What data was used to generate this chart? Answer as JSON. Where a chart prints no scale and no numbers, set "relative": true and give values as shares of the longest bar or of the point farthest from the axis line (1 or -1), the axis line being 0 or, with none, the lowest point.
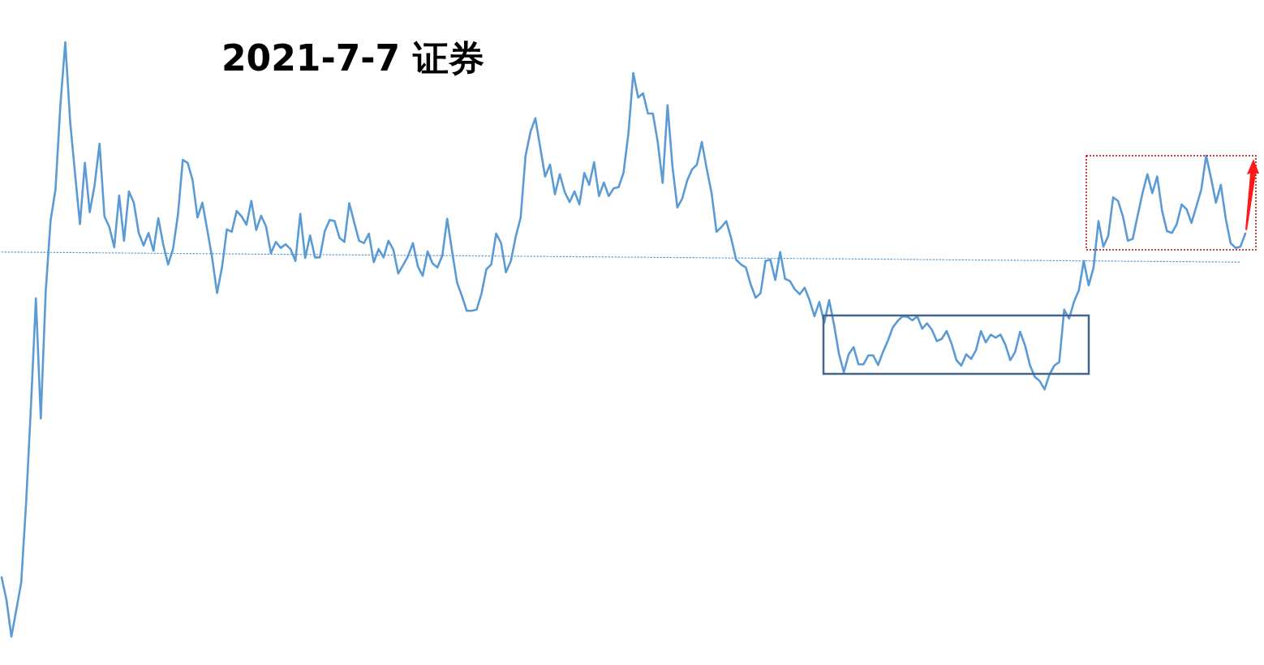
{
  "chart_data": {
    "type": "line",
    "title": "2021-7-7 证券",
    "relative": true,
    "categories": [
      null,
      null,
      null,
      null,
      null,
      null,
      null,
      null,
      null,
      null,
      null,
      null,
      null,
      null,
      null,
      null,
      null,
      null,
      null,
      null,
      null,
      null,
      null,
      null,
      null,
      null,
      null,
      null,
      null,
      null,
      null,
      null,
      null,
      null,
      null,
      null,
      null,
      null,
      null,
      null,
      null,
      null,
      null,
      null,
      null,
      null,
      null,
      null,
      null,
      null,
      null,
      null,
      null,
      null,
      null,
      null,
      null,
      null,
      null,
      null,
      null,
      null,
      null,
      null,
      null,
      null,
      null,
      null,
      null,
      null,
      null,
      null,
      null,
      null,
      null,
      null,
      null,
      null,
      null,
      null,
      null,
      null,
      null,
      null,
      null,
      null,
      null,
      null,
      null,
      null,
      null,
      null,
      null,
      null,
      null,
      null,
      null,
      null,
      null,
      null,
      null,
      null,
      null,
      null,
      null,
      null,
      null,
      null,
      null,
      null,
      null,
      null,
      null,
      null,
      null,
      null,
      null,
      null,
      null,
      null,
      null,
      null,
      null,
      null,
      null,
      null,
      null,
      null,
      null,
      null,
      null,
      null,
      null,
      null,
      null,
      null,
      null,
      null,
      null,
      null,
      null,
      null,
      null,
      null,
      null,
      null,
      null,
      null,
      null,
      null,
      null,
      null,
      null,
      null,
      null,
      null,
      null,
      null,
      null,
      null,
      null,
      null,
      null,
      null,
      null,
      null,
      null,
      null,
      null,
      null,
      null,
      null,
      null,
      null,
      null,
      null,
      null,
      null,
      null,
      null,
      null,
      null,
      null,
      null,
      null,
      null,
      null,
      null,
      null,
      null,
      null,
      null,
      null,
      null,
      null,
      null,
      null,
      null,
      null,
      null,
      null,
      null,
      null,
      null,
      null,
      null,
      null,
      null,
      null,
      null,
      null,
      null,
      null,
      null,
      null,
      null,
      null,
      null,
      null,
      null,
      null,
      null,
      null,
      null,
      null,
      null,
      null,
      null,
      null,
      null,
      null,
      null,
      null,
      null,
      null,
      null,
      null,
      null,
      null,
      null,
      null,
      null,
      null,
      null,
      null,
      null,
      null,
      null,
      null,
      null,
      null,
      null,
      null,
      null,
      null
    ],
    "series": [
      {
        "color": "#5b9bd5",
        "line_style": "solid",
        "values": [
          0.1,
          0.061,
          0,
          0.045,
          0.091,
          0.225,
          0.389,
          0.569,
          0.367,
          0.58,
          0.7,
          0.752,
          0.894,
          1,
          0.866,
          0.778,
          0.694,
          0.797,
          0.714,
          0.76,
          0.829,
          0.707,
          0.689,
          0.655,
          0.742,
          0.666,
          0.749,
          0.73,
          0.679,
          0.658,
          0.679,
          0.649,
          0.704,
          0.66,
          0.626,
          0.652,
          0.709,
          0.802,
          0.797,
          0.768,
          0.705,
          0.73,
          0.684,
          0.637,
          0.578,
          0.621,
          0.685,
          0.681,
          0.716,
          0.707,
          0.693,
          0.733,
          0.684,
          0.708,
          0.69,
          0.645,
          0.664,
          0.654,
          0.66,
          0.652,
          0.632,
          0.711,
          0.637,
          0.675,
          0.638,
          0.638,
          0.682,
          0.701,
          0.699,
          0.671,
          0.664,
          0.729,
          0.697,
          0.666,
          0.662,
          0.678,
          0.63,
          0.652,
          0.638,
          0.666,
          0.651,
          0.611,
          0.625,
          0.64,
          0.662,
          0.623,
          0.607,
          0.648,
          0.628,
          0.621,
          0.641,
          0.703,
          0.648,
          0.596,
          0.573,
          0.548,
          0.548,
          0.55,
          0.577,
          0.618,
          0.626,
          0.678,
          0.662,
          0.613,
          0.632,
          0.673,
          0.705,
          0.809,
          0.849,
          0.872,
          0.823,
          0.774,
          0.794,
          0.744,
          0.778,
          0.748,
          0.731,
          0.749,
          0.727,
          0.78,
          0.76,
          0.798,
          0.741,
          0.764,
          0.741,
          0.754,
          0.756,
          0.78,
          0.846,
          0.948,
          0.907,
          0.914,
          0.88,
          0.88,
          0.832,
          0.763,
          0.894,
          0.791,
          0.722,
          0.737,
          0.767,
          0.786,
          0.794,
          0.832,
          0.787,
          0.746,
          0.681,
          0.689,
          0.699,
          0.67,
          0.634,
          0.626,
          0.621,
          0.592,
          0.57,
          0.578,
          0.632,
          0.634,
          0.6,
          0.647,
          0.602,
          0.598,
          0.584,
          0.576,
          0.587,
          0.566,
          0.539,
          0.563,
          0.528,
          0.566,
          0.525,
          0.476,
          0.445,
          0.475,
          0.487,
          0.458,
          0.458,
          0.473,
          0.473,
          0.457,
          0.479,
          0.498,
          0.52,
          0.531,
          0.539,
          0.538,
          0.532,
          0.539,
          0.518,
          0.527,
          0.516,
          0.497,
          0.501,
          0.514,
          0.493,
          0.465,
          0.456,
          0.475,
          0.467,
          0.482,
          0.514,
          0.495,
          0.508,
          0.503,
          0.508,
          0.491,
          0.465,
          0.479,
          0.513,
          0.49,
          0.457,
          0.437,
          0.43,
          0.416,
          0.441,
          0.456,
          0.462,
          0.55,
          0.535,
          0.563,
          0.583,
          0.632,
          0.591,
          0.621,
          0.699,
          0.656,
          0.674,
          0.739,
          0.733,
          0.707,
          0.666,
          0.669,
          0.708,
          0.746,
          0.778,
          0.746,
          0.774,
          0.716,
          0.682,
          0.679,
          0.694,
          0.727,
          0.719,
          0.696,
          0.724,
          0.752,
          0.809,
          0.771,
          0.73,
          0.76,
          0.703,
          0.662,
          0.654,
          0.656,
          0.678
        ]
      },
      {
        "type": "line",
        "color": "#5b9bd5",
        "line_style": "dotted",
        "values": [
          0.647,
          null,
          null,
          null,
          null,
          null,
          null,
          null,
          null,
          null,
          null,
          null,
          null,
          null,
          null,
          null,
          null,
          null,
          null,
          null,
          null,
          null,
          null,
          null,
          null,
          null,
          null,
          null,
          null,
          null,
          null,
          null,
          null,
          null,
          null,
          null,
          null,
          null,
          null,
          null,
          null,
          null,
          null,
          null,
          null,
          null,
          null,
          null,
          null,
          null,
          null,
          null,
          null,
          null,
          null,
          null,
          null,
          null,
          null,
          null,
          null,
          null,
          null,
          null,
          null,
          null,
          null,
          null,
          null,
          null,
          null,
          null,
          null,
          null,
          null,
          null,
          null,
          null,
          null,
          null,
          null,
          null,
          null,
          null,
          null,
          null,
          null,
          null,
          null,
          null,
          null,
          null,
          null,
          null,
          null,
          null,
          null,
          null,
          null,
          null,
          null,
          null,
          null,
          null,
          null,
          null,
          null,
          null,
          null,
          null,
          null,
          null,
          null,
          null,
          null,
          null,
          null,
          null,
          null,
          null,
          null,
          null,
          null,
          null,
          null,
          null,
          null,
          null,
          null,
          null,
          null,
          null,
          null,
          null,
          null,
          null,
          null,
          null,
          null,
          null,
          null,
          null,
          null,
          null,
          null,
          null,
          null,
          null,
          null,
          null,
          null,
          null,
          null,
          null,
          null,
          null,
          null,
          null,
          null,
          null,
          null,
          null,
          null,
          null,
          null,
          null,
          null,
          null,
          null,
          null,
          null,
          null,
          null,
          null,
          null,
          null,
          null,
          null,
          null,
          null,
          null,
          null,
          null,
          null,
          null,
          null,
          null,
          null,
          null,
          null,
          null,
          null,
          null,
          null,
          null,
          null,
          null,
          null,
          null,
          null,
          null,
          null,
          null,
          null,
          null,
          null,
          null,
          null,
          null,
          null,
          null,
          null,
          null,
          null,
          null,
          null,
          null,
          null,
          null,
          null,
          null,
          null,
          null,
          null,
          null,
          null,
          null,
          null,
          null,
          null,
          null,
          null,
          null,
          null,
          null,
          null,
          null,
          null,
          null,
          null,
          null,
          null,
          null,
          null,
          null,
          null,
          null,
          null,
          null,
          null,
          null,
          null,
          null,
          0.63,
          null
        ]
      }
    ]
  }
}
